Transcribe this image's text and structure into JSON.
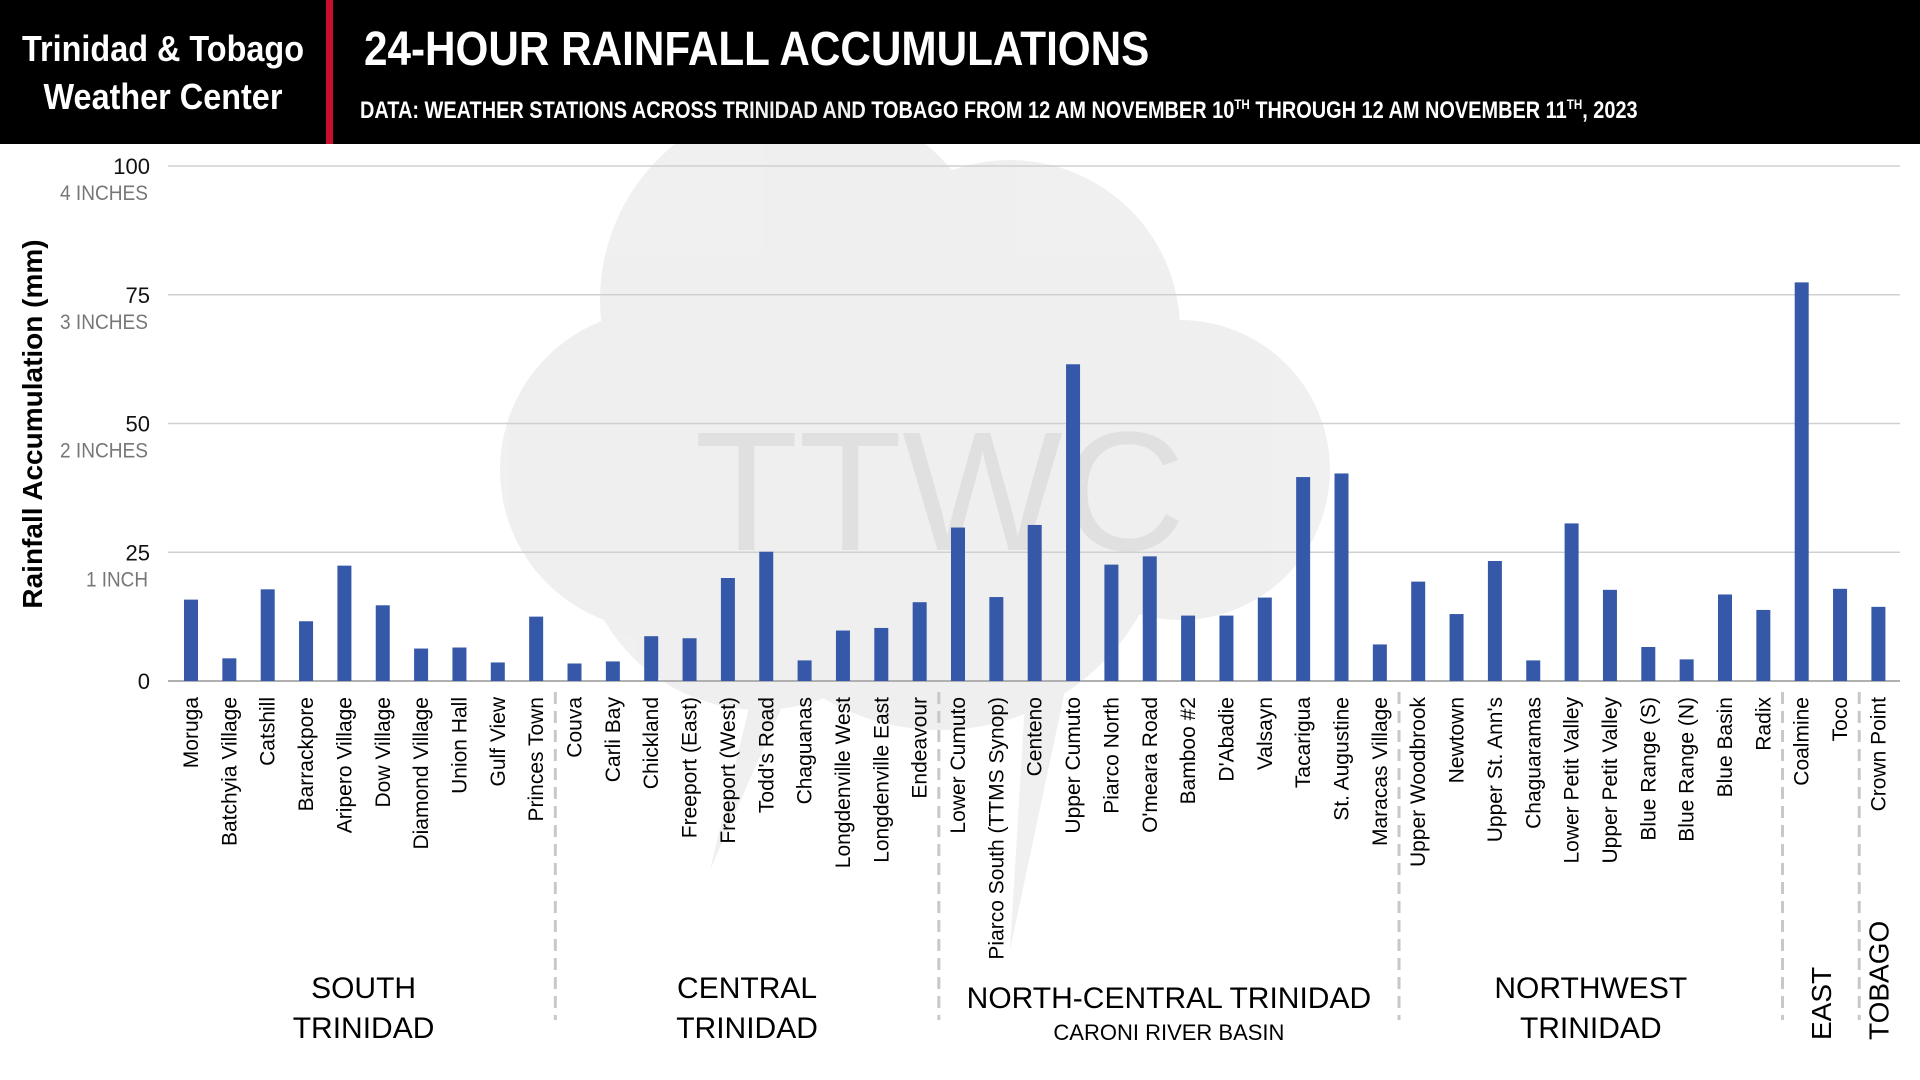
{
  "header": {
    "brand_line1": "Trinidad & Tobago",
    "brand_line2": "Weather Center",
    "title": "24-HOUR RAINFALL ACCUMULATIONS",
    "subtitle_parts": {
      "a": "DATA: WEATHER STATIONS ACROSS TRINIDAD AND TOBAGO FROM 12 AM NOVEMBER 10",
      "a_sup": "TH",
      "b": " THROUGH 12 AM NOVEMBER 11",
      "b_sup": "TH",
      "c": ", 2023"
    }
  },
  "watermark": "TTWC",
  "colors": {
    "bar": "#3558a8",
    "header_bg": "#000000",
    "accent_red": "#c8102e",
    "grid": "#d0d0d0",
    "divider": "#c8c8c8"
  },
  "chart_data": {
    "type": "bar",
    "ylabel": "Rainfall Accumulation (mm)",
    "ylim": [
      0,
      100
    ],
    "yticks": [
      {
        "value": 0,
        "label": "0",
        "sub": ""
      },
      {
        "value": 25,
        "label": "25",
        "sub": "1 INCH"
      },
      {
        "value": 50,
        "label": "50",
        "sub": "2 INCHES"
      },
      {
        "value": 75,
        "label": "75",
        "sub": "3 INCHES"
      },
      {
        "value": 100,
        "label": "100",
        "sub": "4 INCHES"
      }
    ],
    "grid": true,
    "categories": [
      "Moruga",
      "Batchyia Village",
      "Catshill",
      "Barrackpore",
      "Aripero Village",
      "Dow Village",
      "Diamond Village",
      "Union Hall",
      "Gulf View",
      "Princes Town",
      "Couva",
      "Carli Bay",
      "Chickland",
      "Freeport (East)",
      "Freeport (West)",
      "Todd's Road",
      "Chaguanas",
      "Longdenville West",
      "Longdenville East",
      "Endeavour",
      "Lower Cumuto",
      "Piarco South (TTMS Synop)",
      "Centeno",
      "Upper Cumuto",
      "Piarco North",
      "O'meara Road",
      "Bamboo #2",
      "D'Abadie",
      "Valsayn",
      "Tacarigua",
      "St. Augustine",
      "Maracas Village",
      "Upper Woodbrook",
      "Newtown",
      "Upper St. Ann's",
      "Chaguaramas",
      "Lower Petit Valley",
      "Upper Petit Valley",
      "Blue Range (S)",
      "Blue Range (N)",
      "Blue Basin",
      "Radix",
      "Coalmine",
      "Toco",
      "Crown Point"
    ],
    "values": [
      15.8,
      4.4,
      17.8,
      11.6,
      22.4,
      14.7,
      6.3,
      6.5,
      3.6,
      12.5,
      3.4,
      3.8,
      8.7,
      8.3,
      20.0,
      25.1,
      4.0,
      9.8,
      10.3,
      15.3,
      29.8,
      16.3,
      30.3,
      61.5,
      22.6,
      24.2,
      12.7,
      12.7,
      16.2,
      39.6,
      40.3,
      7.1,
      19.3,
      13.0,
      23.3,
      4.0,
      30.6,
      17.7,
      6.6,
      4.2,
      16.8,
      13.8,
      77.4,
      17.9,
      14.4
    ],
    "regions": [
      {
        "lines": [
          "SOUTH",
          "TRINIDAD"
        ],
        "sub": "",
        "start": 0,
        "end": 9
      },
      {
        "lines": [
          "CENTRAL",
          "TRINIDAD"
        ],
        "sub": "",
        "start": 10,
        "end": 19
      },
      {
        "lines": [
          "NORTH-CENTRAL TRINIDAD"
        ],
        "sub": "CARONI RIVER BASIN",
        "start": 20,
        "end": 31
      },
      {
        "lines": [
          "NORTHWEST",
          "TRINIDAD"
        ],
        "sub": "",
        "start": 32,
        "end": 41
      },
      {
        "lines": [
          "EAST"
        ],
        "sub": "",
        "start": 42,
        "end": 43,
        "vertical": true
      },
      {
        "lines": [
          "TOBAGO"
        ],
        "sub": "",
        "start": 44,
        "end": 44,
        "vertical": true
      }
    ]
  }
}
